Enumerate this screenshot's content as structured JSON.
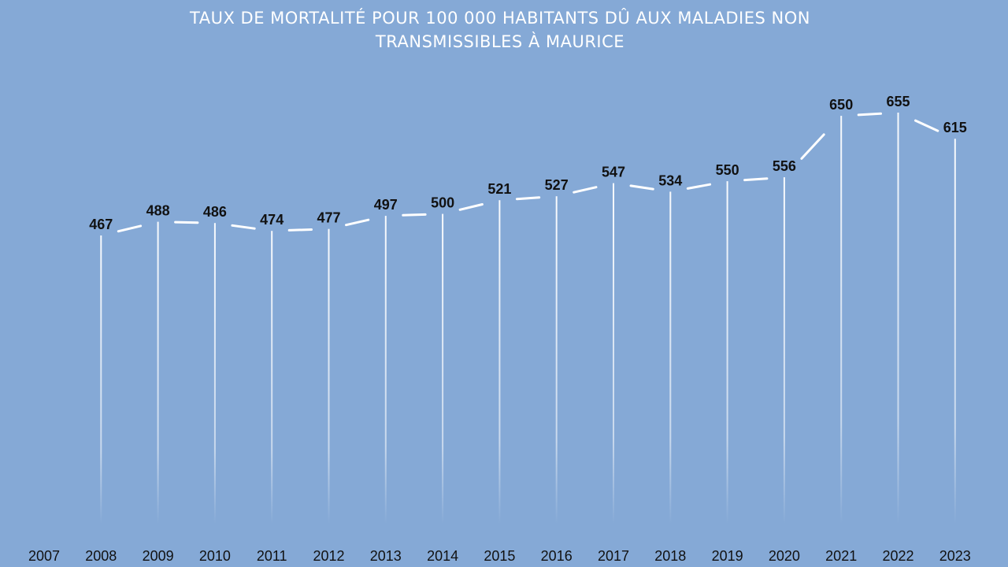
{
  "chart_data": {
    "type": "line",
    "title": "TAUX DE MORTALITÉ POUR 100 000 HABITANTS DÛ AUX MALADIES NON\nTRANSMISSIBLES À MAURICE",
    "categories": [
      "2007",
      "2008",
      "2009",
      "2010",
      "2011",
      "2012",
      "2013",
      "2014",
      "2015",
      "2016",
      "2017",
      "2018",
      "2019",
      "2020",
      "2021",
      "2022",
      "2023"
    ],
    "series": [
      {
        "values": [
          null,
          467,
          488,
          486,
          474,
          477,
          497,
          500,
          521,
          527,
          547,
          534,
          550,
          556,
          650,
          655,
          615
        ],
        "labels": [
          "",
          "467",
          "488",
          "486",
          "474",
          "477",
          "497",
          "500",
          "521",
          "527",
          "547",
          "534",
          "550",
          "556",
          "650",
          "655",
          "615"
        ]
      }
    ],
    "xlabel": "",
    "ylabel": "",
    "grid": false,
    "drop_lines": true,
    "colors": {
      "background": "#85a9d6",
      "line": "#ffffff",
      "drop_line": "#ffffff",
      "data_label": "#111111",
      "title": "#ffffff"
    }
  }
}
